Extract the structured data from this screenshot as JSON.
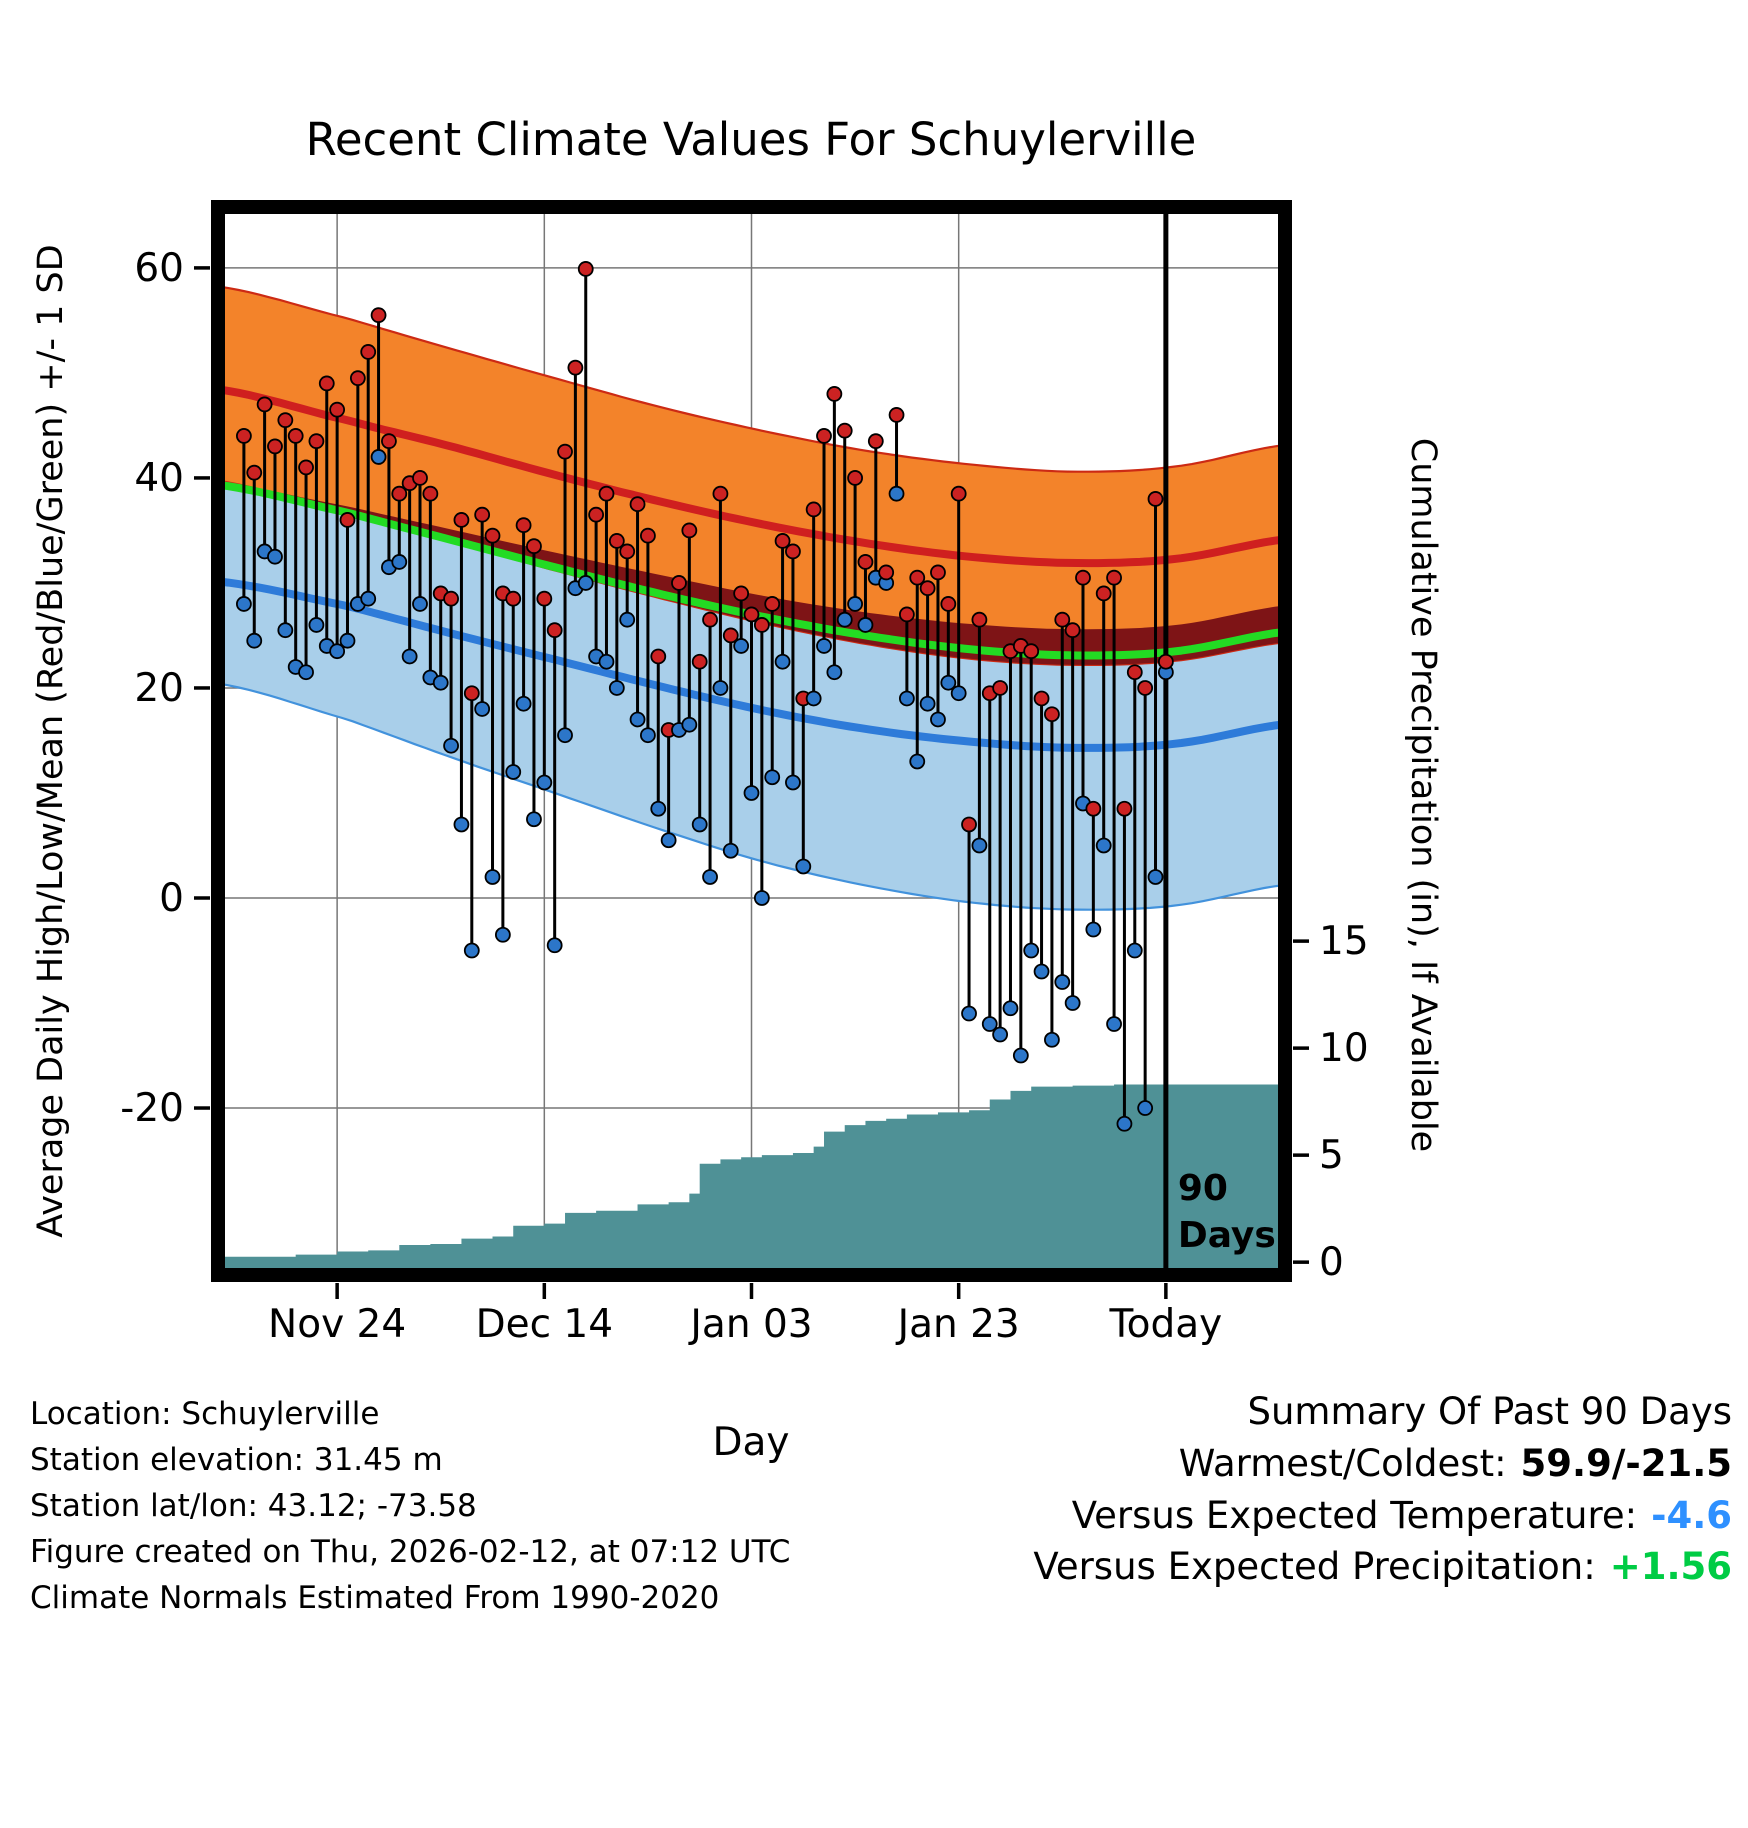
{
  "figure": {
    "background": "#ffffff"
  },
  "chart_data": {
    "type": "composite",
    "title": "Recent Climate Values For Schuylerville",
    "x_axis": {
      "label": "Day",
      "domain_days": [
        -2.5,
        100.5
      ],
      "ticks": [
        {
          "day": 9,
          "label": "Nov 24"
        },
        {
          "day": 29,
          "label": "Dec 14"
        },
        {
          "day": 49,
          "label": "Jan 03"
        },
        {
          "day": 69,
          "label": "Jan 23"
        },
        {
          "day": 89,
          "label": "Today"
        }
      ]
    },
    "left_axis": {
      "label": "Average Daily High/Low/Mean (Red/Blue/Green) +/- 1 SD",
      "range": [
        -35.9,
        65.8
      ],
      "ticks": [
        60,
        40,
        20,
        0,
        -20
      ]
    },
    "right_axis": {
      "label": "Cumulative Precipitation (in), If Available",
      "range": [
        -0.6,
        49.3
      ],
      "ticks": [
        15,
        10,
        5,
        0
      ]
    },
    "normals": {
      "knot_days": [
        -3,
        10,
        20,
        30,
        40,
        50,
        60,
        70,
        80,
        90,
        101
      ],
      "high_upper": [
        58.3,
        55.2,
        52.3,
        49.5,
        46.8,
        44.5,
        42.6,
        41.3,
        40.6,
        41.1,
        43.2
      ],
      "high_mean": [
        48.5,
        45.5,
        43.0,
        40.3,
        37.8,
        35.6,
        33.8,
        32.5,
        31.9,
        32.3,
        34.2
      ],
      "high_lower": [
        39.8,
        36.6,
        33.9,
        31.2,
        28.6,
        26.2,
        24.2,
        22.8,
        22.2,
        22.6,
        24.4
      ],
      "mean": [
        39.4,
        36.7,
        34.1,
        31.5,
        29.0,
        26.8,
        25.0,
        23.7,
        23.1,
        23.5,
        25.4
      ],
      "low_upper": [
        39.6,
        37.3,
        35.1,
        32.9,
        30.8,
        28.8,
        27.2,
        26.1,
        25.6,
        26.0,
        27.9
      ],
      "low_mean": [
        30.2,
        27.8,
        25.2,
        22.7,
        20.2,
        17.9,
        16.1,
        14.9,
        14.3,
        14.7,
        16.6
      ],
      "low_lower": [
        20.5,
        17.0,
        13.4,
        10.0,
        6.6,
        3.5,
        1.2,
        -0.4,
        -1.1,
        -0.7,
        1.3
      ]
    },
    "daily": {
      "start_day": 0,
      "high": [
        44,
        40.5,
        47,
        43,
        45.5,
        44,
        41,
        43.5,
        49,
        46.5,
        36,
        49.5,
        52,
        55.5,
        43.5,
        38.5,
        39.5,
        40,
        38.5,
        29,
        28.5,
        36,
        19.5,
        36.5,
        34.5,
        29,
        28.5,
        35.5,
        33.5,
        28.5,
        25.5,
        42.5,
        50.5,
        59.9,
        36.5,
        38.5,
        34,
        33,
        37.5,
        34.5,
        23,
        16,
        30,
        35,
        22.5,
        26.5,
        38.5,
        25,
        29,
        27,
        26,
        28,
        34,
        33,
        19,
        37,
        44,
        48,
        44.5,
        40,
        32,
        43.5,
        31,
        46,
        27,
        30.5,
        29.5,
        31,
        28,
        38.5,
        7,
        26.5,
        19.5,
        20,
        23.5,
        24,
        23.5,
        19,
        17.5,
        26.5,
        25.5,
        30.5,
        8.5,
        29,
        30.5,
        8.5,
        21.5,
        20,
        38,
        22.5
      ],
      "low": [
        28,
        24.5,
        33,
        32.5,
        25.5,
        22,
        21.5,
        26,
        24,
        23.5,
        24.5,
        28,
        28.5,
        42,
        31.5,
        32,
        23,
        28,
        21,
        20.5,
        14.5,
        7,
        -5,
        18,
        2,
        -3.5,
        12,
        18.5,
        7.5,
        11,
        -4.5,
        15.5,
        29.5,
        30,
        23,
        22.5,
        20,
        26.5,
        17,
        15.5,
        8.5,
        5.5,
        16,
        16.5,
        7,
        2,
        20,
        4.5,
        24,
        10,
        0,
        11.5,
        22.5,
        11,
        3,
        19,
        24,
        21.5,
        26.5,
        28,
        26,
        30.5,
        30,
        38.5,
        19,
        13,
        18.5,
        17,
        20.5,
        19.5,
        -11,
        5,
        -12,
        -13,
        -10.5,
        -15,
        -5,
        -7,
        -13.5,
        -8,
        -10,
        9,
        -3,
        5,
        -12,
        -21.5,
        -5,
        -20,
        2,
        21.5
      ]
    },
    "precip_cumulative_steps": [
      [
        -2.5,
        0.25
      ],
      [
        5,
        0.35
      ],
      [
        9,
        0.5
      ],
      [
        12,
        0.55
      ],
      [
        15,
        0.8
      ],
      [
        18,
        0.85
      ],
      [
        21,
        1.1
      ],
      [
        24,
        1.2
      ],
      [
        26,
        1.7
      ],
      [
        29,
        1.8
      ],
      [
        31,
        2.3
      ],
      [
        34,
        2.4
      ],
      [
        38,
        2.7
      ],
      [
        41,
        2.8
      ],
      [
        43,
        3.2
      ],
      [
        44,
        4.6
      ],
      [
        46,
        4.8
      ],
      [
        48,
        4.9
      ],
      [
        50,
        5.0
      ],
      [
        53,
        5.1
      ],
      [
        55,
        5.4
      ],
      [
        56,
        6.1
      ],
      [
        58,
        6.4
      ],
      [
        60,
        6.6
      ],
      [
        62,
        6.7
      ],
      [
        64,
        6.9
      ],
      [
        67,
        7.0
      ],
      [
        70,
        7.1
      ],
      [
        72,
        7.6
      ],
      [
        74,
        8.0
      ],
      [
        76,
        8.2
      ],
      [
        80,
        8.25
      ],
      [
        84,
        8.3
      ],
      [
        89,
        8.3
      ],
      [
        100.5,
        8.3
      ]
    ],
    "annotation": {
      "vline_day": 89,
      "label_lines": [
        "90",
        "Days"
      ]
    },
    "colors": {
      "high_band": "#F3832A",
      "high_band_edge": "#CC2A14",
      "low_band": "#A9CFEA",
      "low_band_edge": "#4292DC",
      "overlap_band": "#7E1416",
      "high_mean_line": "#CF1F1F",
      "low_mean_line": "#2E7BD9",
      "mean_line": "#23DB23",
      "high_dot": "#CC2222",
      "low_dot": "#2C76C9",
      "stem": "#000000",
      "precip_fill": "#4F9196",
      "grid": "#777777"
    }
  },
  "footer": {
    "lines": [
      "Location: Schuylerville",
      "Station elevation: 31.45 m",
      "Station lat/lon: 43.12; -73.58",
      "Figure created on Thu, 2026-02-12, at 07:12 UTC",
      "Climate Normals Estimated From 1990-2020"
    ]
  },
  "summary": {
    "title": "Summary Of Past 90 Days",
    "warmest_coldest_label": "Warmest/Coldest:",
    "warmest_coldest_value": "59.9/-21.5",
    "vs_temp_label": "Versus Expected Temperature:",
    "vs_temp_value": "-4.6",
    "vs_temp_color": "#2E90FF",
    "vs_precip_label": "Versus Expected Precipitation:",
    "vs_precip_value": "+1.56",
    "vs_precip_color": "#00CC44"
  }
}
